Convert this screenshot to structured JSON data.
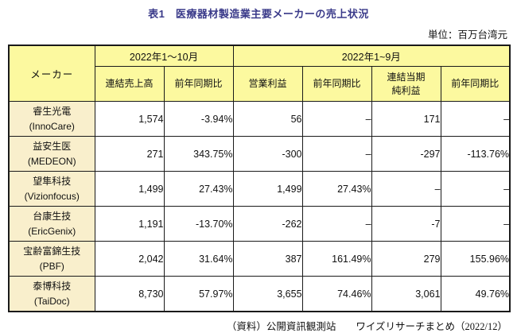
{
  "page": {
    "title": "表1　医療器材製造業主要メーカーの売上状況",
    "unit_label": "単位：百万台湾元",
    "source_note": "（資料）公開資訊観測站　　ワイズリサーチまとめ（2022/12）"
  },
  "table": {
    "maker_header": "メーカー",
    "period_groups": [
      {
        "label": "2022年1～10月"
      },
      {
        "label": "2022年1~9月"
      }
    ],
    "sub_headers": [
      "連結売上高",
      "前年同期比",
      "営業利益",
      "前年同期比",
      "連結当期\n純利益",
      "前年同期比"
    ],
    "rows": [
      {
        "name_zh": "睿生光電",
        "name_en": "(InnoCare)",
        "values": [
          "1,574",
          "-3.94%",
          "56",
          "–",
          "171",
          "–"
        ]
      },
      {
        "name_zh": "益安生医",
        "name_en": "(MEDEON)",
        "values": [
          "271",
          "343.75%",
          "-300",
          "–",
          "-297",
          "-113.76%"
        ]
      },
      {
        "name_zh": "望隼科技",
        "name_en": "(Vizionfocus)",
        "values": [
          "1,499",
          "27.43%",
          "1,499",
          "27.43%",
          "–",
          "–"
        ]
      },
      {
        "name_zh": "台康生技",
        "name_en": "(EricGenix)",
        "values": [
          "1,191",
          "-13.70%",
          "-262",
          "–",
          "-7",
          "–"
        ]
      },
      {
        "name_zh": "宝齢富錦生技",
        "name_en": "(PBF)",
        "values": [
          "2,042",
          "31.64%",
          "387",
          "161.49%",
          "279",
          "155.96%"
        ]
      },
      {
        "name_zh": "泰博科技",
        "name_en": "(TaiDoc)",
        "values": [
          "8,730",
          "57.97%",
          "3,655",
          "74.46%",
          "3,061",
          "49.76%"
        ]
      }
    ]
  },
  "colors": {
    "header_bg": "#fcf99f",
    "maker_bg": "#f9efcc",
    "border": "#1a1a1a",
    "title_text": "#393989"
  }
}
